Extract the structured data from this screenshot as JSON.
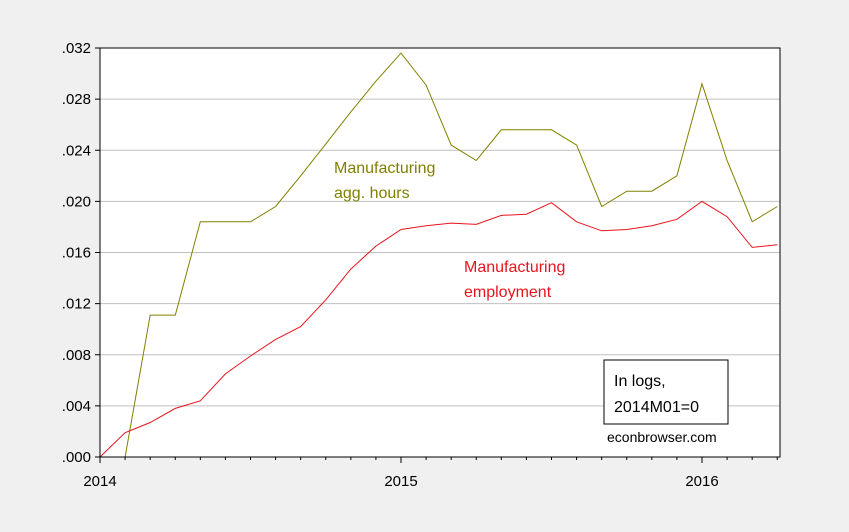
{
  "chart_data": {
    "type": "line",
    "x": [
      "2014M01",
      "2014M02",
      "2014M03",
      "2014M04",
      "2014M05",
      "2014M06",
      "2014M07",
      "2014M08",
      "2014M09",
      "2014M10",
      "2014M11",
      "2014M12",
      "2015M01",
      "2015M02",
      "2015M03",
      "2015M04",
      "2015M05",
      "2015M06",
      "2015M07",
      "2015M08",
      "2015M09",
      "2015M10",
      "2015M11",
      "2015M12",
      "2016M01",
      "2016M02",
      "2016M03",
      "2016M04"
    ],
    "xticks": [
      {
        "value": "2014M01",
        "label": "2014"
      },
      {
        "value": "2015M01",
        "label": "2015"
      },
      {
        "value": "2016M01",
        "label": "2016"
      }
    ],
    "ylim": [
      0,
      0.032
    ],
    "yticks": [
      ".000",
      ".004",
      ".008",
      ".012",
      ".016",
      ".020",
      ".024",
      ".028",
      ".032"
    ],
    "grid": true,
    "series": [
      {
        "name": "Manufacturing agg. hours",
        "color": "#808000",
        "values": [
          0.0,
          0.0,
          0.0111,
          0.0111,
          0.0184,
          0.0184,
          0.0184,
          0.0196,
          0.022,
          0.0245,
          0.027,
          0.0294,
          0.0316,
          0.0291,
          0.0244,
          0.0232,
          0.0256,
          0.0256,
          0.0256,
          0.0244,
          0.0196,
          0.0208,
          0.0208,
          0.022,
          0.0292,
          0.0232,
          0.0184,
          0.0196
        ]
      },
      {
        "name": "Manufacturing employment",
        "color": "#e8141c",
        "values": [
          0.0,
          0.0019,
          0.0027,
          0.0038,
          0.0044,
          0.0065,
          0.0079,
          0.0092,
          0.0102,
          0.0123,
          0.0147,
          0.0165,
          0.0178,
          0.0181,
          0.0183,
          0.0182,
          0.0189,
          0.019,
          0.0199,
          0.0184,
          0.0177,
          0.0178,
          0.0181,
          0.0186,
          0.02,
          0.0188,
          0.0164,
          0.0166
        ]
      }
    ],
    "annotations": {
      "hours_line1": "Manufacturing",
      "hours_line2": "agg. hours",
      "employment_line1": "Manufacturing",
      "employment_line2": "employment",
      "box_line1": "In logs,",
      "box_line2": "2014M01=0",
      "credit": "econbrowser.com"
    }
  }
}
